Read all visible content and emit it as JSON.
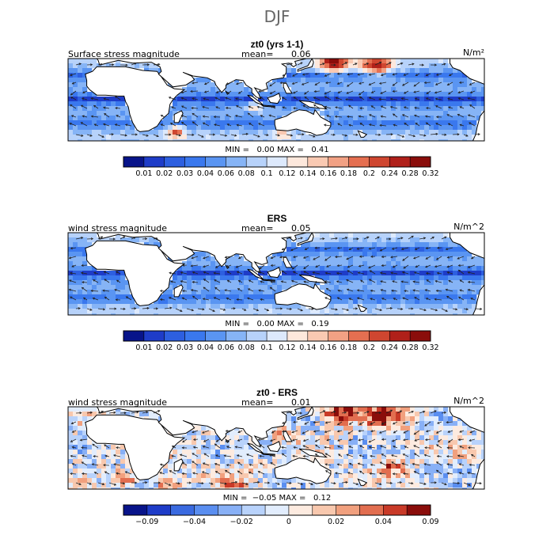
{
  "chart_data": {
    "type": "heatmap",
    "title": "DJF",
    "panels": [
      {
        "subtitle": "zt0 (yrs 1-1)",
        "left_label": "Surface stress magnitude",
        "mean_label": "mean=",
        "mean_value": "0.06",
        "units": "N/m²",
        "stats": "MIN =   0.00 MAX =   0.41",
        "colorbar_ticks": [
          "0.01",
          "0.02",
          "0.03",
          "0.04",
          "0.06",
          "0.08",
          "0.1",
          "0.12",
          "0.14",
          "0.16",
          "0.18",
          "0.2",
          "0.24",
          "0.28",
          "0.32"
        ],
        "kind": "magnitude",
        "seed": 11,
        "hotspots": [
          {
            "lon": 155,
            "lat": 40,
            "amp": 0.9,
            "r": 10
          },
          {
            "lon": 185,
            "lat": 38,
            "amp": 0.8,
            "r": 12
          },
          {
            "lon": 45,
            "lat": -35,
            "amp": 0.7,
            "r": 6
          },
          {
            "lon": 100,
            "lat": -8,
            "amp": 0.5,
            "r": 5
          },
          {
            "lon": 120,
            "lat": -35,
            "amp": 0.4,
            "r": 6
          }
        ]
      },
      {
        "subtitle": "ERS",
        "left_label": "wind stress magnitude",
        "mean_label": "mean=",
        "mean_value": "0.05",
        "units": "N/m^2",
        "stats": "MIN =   0.00 MAX =   0.19",
        "colorbar_ticks": [
          "0.01",
          "0.02",
          "0.03",
          "0.04",
          "0.06",
          "0.08",
          "0.1",
          "0.12",
          "0.14",
          "0.16",
          "0.18",
          "0.2",
          "0.24",
          "0.28",
          "0.32"
        ],
        "kind": "magnitude",
        "seed": 23,
        "hotspots": []
      },
      {
        "subtitle": "zt0 - ERS",
        "left_label": "wind stress magnitude",
        "mean_label": "mean=",
        "mean_value": "0.01",
        "units": "N/m^2",
        "stats": "MIN =  −0.05 MAX =   0.12",
        "colorbar_ticks": [
          "−0.09",
          "",
          "−0.04",
          "",
          "−0.02",
          "",
          "0",
          "",
          "0.02",
          "",
          "0.04",
          "",
          "0.09"
        ],
        "kind": "difference",
        "seed": 37,
        "hotspots": [
          {
            "lon": 160,
            "lat": 38,
            "amp": 0.9,
            "r": 12
          },
          {
            "lon": 190,
            "lat": 36,
            "amp": 0.8,
            "r": 12
          },
          {
            "lon": 40,
            "lat": -38,
            "amp": 0.7,
            "r": 8
          },
          {
            "lon": 10,
            "lat": -32,
            "amp": 0.6,
            "r": 8
          },
          {
            "lon": 195,
            "lat": -20,
            "amp": 0.6,
            "r": 9
          },
          {
            "lon": 120,
            "lat": 15,
            "amp": 0.5,
            "r": 7
          },
          {
            "lon": 85,
            "lat": -40,
            "amp": 0.45,
            "r": 8
          }
        ]
      }
    ],
    "magnitude_colors": [
      "#08148a",
      "#1e3cc8",
      "#2d5fe0",
      "#3a78ee",
      "#5a95f2",
      "#86b4f6",
      "#b7d2fa",
      "#dde9fc",
      "#fde8dc",
      "#f9c9b2",
      "#f2a184",
      "#e56f51",
      "#cf4630",
      "#b0201a",
      "#8a0d0b"
    ],
    "difference_colors": [
      "#08148a",
      "#1e3cc8",
      "#3a6ae0",
      "#5a8ef0",
      "#88b0f6",
      "#b8d2fb",
      "#e2edfd",
      "#fdebe0",
      "#f8c8ae",
      "#f1a07e",
      "#e26e50",
      "#c93a28",
      "#8a0d0b"
    ]
  }
}
